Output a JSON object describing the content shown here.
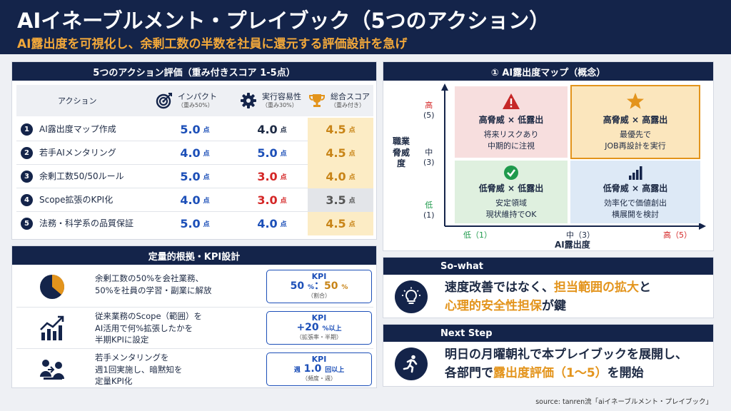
{
  "header": {
    "title": "AIイネーブルメント・プレイブック（5つのアクション）",
    "subtitle": "AI露出度を可視化し、余剰工数の半数を社員に還元する評価設計を急げ"
  },
  "actions_table": {
    "title": "5つのアクション評価（重み付きスコア 1-5点）",
    "col_action": "アクション",
    "col_impact": "インパクト",
    "col_impact_w": "（重み50%）",
    "col_ease": "実行容易性",
    "col_ease_w": "（重み30%）",
    "col_total": "総合スコア",
    "col_total_w": "（重み付き）",
    "unit": "点",
    "rows": [
      {
        "num": "1",
        "name": "AI露出度マップ作成",
        "impact": "5.0",
        "ease": "4.0",
        "total": "4.5"
      },
      {
        "num": "2",
        "name": "若手AIメンタリング",
        "impact": "4.0",
        "ease": "5.0",
        "total": "4.5"
      },
      {
        "num": "3",
        "name": "余剰工数50/50ルール",
        "impact": "5.0",
        "ease": "3.0",
        "total": "4.0"
      },
      {
        "num": "4",
        "name": "Scope拡張のKPI化",
        "impact": "4.0",
        "ease": "3.0",
        "total": "3.5"
      },
      {
        "num": "5",
        "name": "法務・科学系の品質保証",
        "impact": "5.0",
        "ease": "4.0",
        "total": "4.5"
      }
    ]
  },
  "kpi": {
    "title": "定量的根拠・KPI設計",
    "label": "KPI",
    "items": [
      {
        "icon": "pie-chart-icon",
        "line1": "余剰工数の50%を会社業務、",
        "line2": "50%を社員の学習・副業に解放",
        "line3": "",
        "v1": "50",
        "u1": "%",
        "sep": "：",
        "v2": "50",
        "u2": "%",
        "sub": "（割合）"
      },
      {
        "icon": "growth-chart-icon",
        "line1": "従来業務のScope（範囲）を",
        "line2": "AI活用で何%拡張したかを",
        "line3": "半期KPIに設定",
        "v1": "+20",
        "u1": "%以上",
        "sub": "（拡張率・半期）"
      },
      {
        "icon": "mentoring-icon",
        "line1": "若手メンタリングを",
        "line2": "週1回実施し、暗黙知を",
        "line3": "定量KPI化",
        "pre": "週",
        "v1": "1.0",
        "u1": "回以上",
        "sub": "（頻度・週）"
      }
    ]
  },
  "map": {
    "title": "① AI露出度マップ（概念）",
    "y_axis": "職業脅威度",
    "x_axis": "AI露出度",
    "y_high": "高",
    "y_high_n": "(5)",
    "y_mid": "中",
    "y_mid_n": "(3)",
    "y_low": "低",
    "y_low_n": "(1)",
    "x_low": "低（1）",
    "x_mid": "中（3）",
    "x_high": "高（5）",
    "quadrants": {
      "tl": {
        "title": "高脅威 × 低露出",
        "l1": "将来リスクあり",
        "l2": "中期的に注視"
      },
      "tr": {
        "title": "高脅威 × 高露出",
        "l1": "最優先で",
        "l2": "JOB再設計を実行"
      },
      "bl": {
        "title": "低脅威 × 低露出",
        "l1": "安定領域",
        "l2": "現状維持でOK"
      },
      "br": {
        "title": "低脅威 × 高露出",
        "l1": "効率化で価値創出",
        "l2": "横展開を検討"
      }
    }
  },
  "so_what": {
    "title": "So-what",
    "a": "速度改善ではなく、",
    "b": "担当範囲の拡大",
    "c": "と",
    "d": "心理的安全性担保",
    "e": "が鍵"
  },
  "next_step": {
    "title": "Next Step",
    "a": "明日の月曜朝礼で本プレイブックを展開し、",
    "b": "各部門で",
    "c": "露出度評価（1〜5）",
    "d": "を開始"
  },
  "source": "source: tanren流「aiイネーブルメント・プレイブック」",
  "colors": {
    "navy": "#14244a",
    "accent": "#f2a83a",
    "blue": "#1c4fb8",
    "red": "#d42626"
  }
}
